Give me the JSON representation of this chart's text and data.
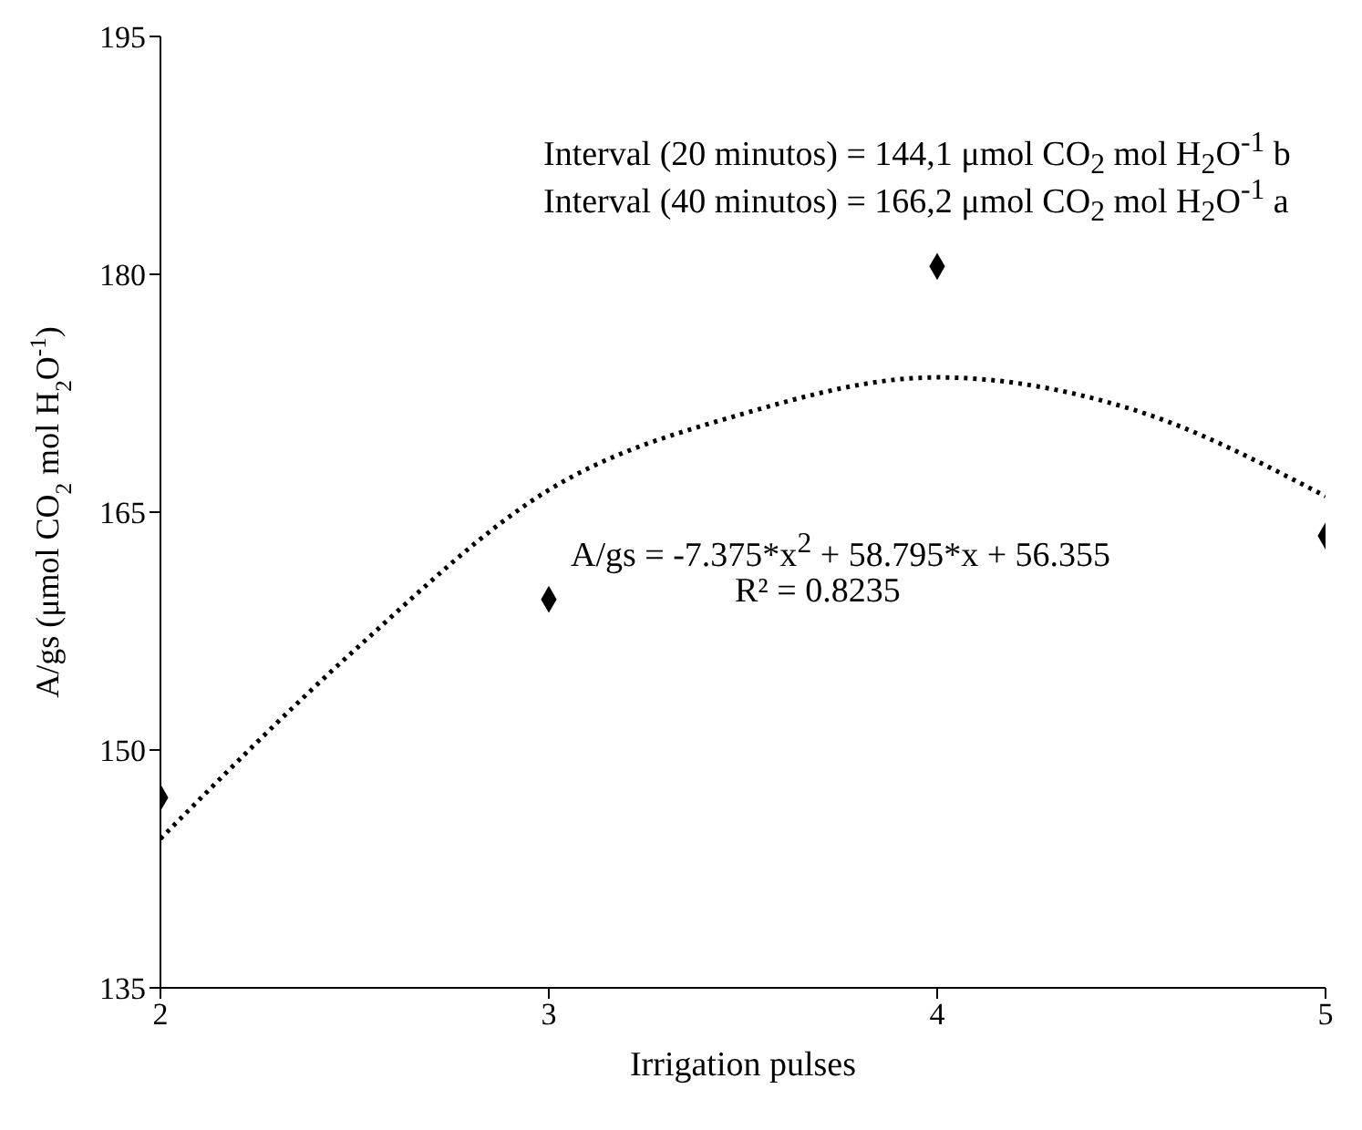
{
  "chart_data": {
    "type": "scatter",
    "xlabel": "Irrigation pulses",
    "ylabel": "A/gs (μmol  CO$_{2}$ mol H$_{2}$O$^{-1}$)",
    "x": [
      2,
      3,
      4,
      5
    ],
    "series": [
      {
        "color": "#000000",
        "marker": "diamond",
        "values": [
          147,
          159.5,
          180.5,
          163.5
        ]
      },
      {
        "type": "line",
        "color": "#000000",
        "marker": "none",
        "line_style": "dotted",
        "x": [
          2,
          2.5,
          3,
          3.5,
          4,
          4.5,
          5
        ],
        "values": [
          144.4,
          156.3,
          166.4,
          171.2,
          173.5,
          171.5,
          166
        ]
      }
    ],
    "xlim": [
      2,
      5
    ],
    "xticks": [
      2,
      3,
      4,
      5
    ],
    "ylim": [
      135,
      195
    ],
    "yticks": [
      135,
      150,
      165,
      180,
      195
    ],
    "grid": false,
    "annotations": [
      "Interval (20 minutos) = 144,1  μmol CO$_{2}$ mol H$_{2}$O$^{-1}$ b",
      "Interval (40 minutos) = 166,2  μmol CO$_{2}$ mol H$_{2}$O$^{-1}$ a",
      "A/gs = -7.375*x$^{2}$ + 58.795*x + 56.355",
      "R² = 0.8235"
    ]
  }
}
